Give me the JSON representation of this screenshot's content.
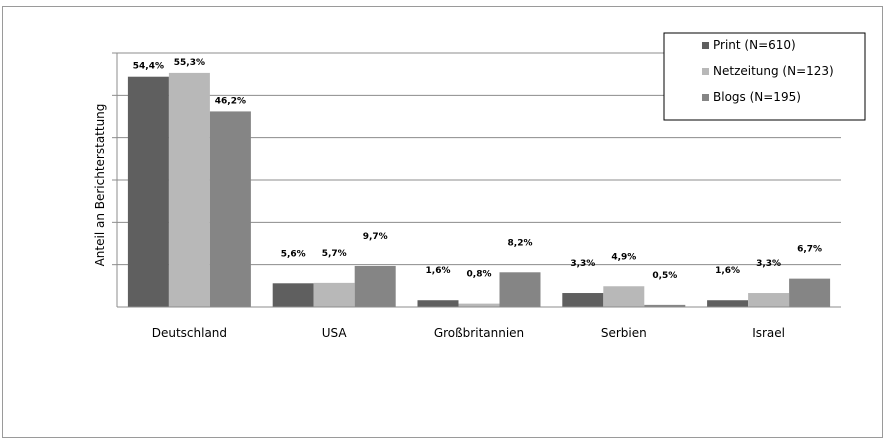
{
  "chart_data": {
    "type": "bar",
    "title": "",
    "xlabel": "",
    "ylabel": "Anteil an Berichterstattung",
    "ylim": [
      0,
      60
    ],
    "grid": true,
    "legend_position": "top-right",
    "categories": [
      "Deutschland",
      "USA",
      "Großbritannien",
      "Serbien",
      "Israel"
    ],
    "series": [
      {
        "name": "Print (N=610)",
        "color": "#5f5f5f",
        "values": [
          54.4,
          5.6,
          1.6,
          3.3,
          1.6
        ],
        "labels": [
          "54,4%",
          "5,6%",
          "1,6%",
          "3,3%",
          "1,6%"
        ]
      },
      {
        "name": "Netzeitung (N=123)",
        "color": "#b8b8b8",
        "values": [
          55.3,
          5.7,
          0.8,
          4.9,
          3.3
        ],
        "labels": [
          "55,3%",
          "5,7%",
          "0,8%",
          "4,9%",
          "3,3%"
        ]
      },
      {
        "name": "Blogs (N=195)",
        "color": "#858585",
        "values": [
          46.2,
          9.7,
          8.2,
          0.5,
          6.7
        ],
        "labels": [
          "46,2%",
          "9,7%",
          "8,2%",
          "0,5%",
          "6,7%"
        ]
      }
    ]
  }
}
